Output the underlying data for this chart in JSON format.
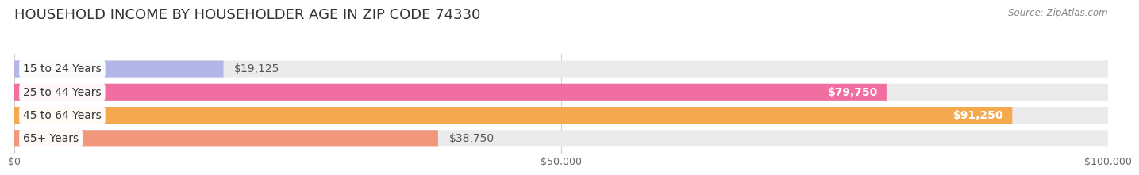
{
  "title": "HOUSEHOLD INCOME BY HOUSEHOLDER AGE IN ZIP CODE 74330",
  "source": "Source: ZipAtlas.com",
  "categories": [
    "15 to 24 Years",
    "25 to 44 Years",
    "45 to 64 Years",
    "65+ Years"
  ],
  "values": [
    19125,
    79750,
    91250,
    38750
  ],
  "bar_colors": [
    "#b3b7e8",
    "#f06fa0",
    "#f5a94e",
    "#f0967a"
  ],
  "track_color": "#ebebeb",
  "xlim": [
    0,
    100000
  ],
  "xticks": [
    0,
    50000,
    100000
  ],
  "xtick_labels": [
    "$0",
    "$50,000",
    "$100,000"
  ],
  "value_labels": [
    "$19,125",
    "$79,750",
    "$91,250",
    "$38,750"
  ],
  "value_inside": [
    false,
    true,
    true,
    false
  ],
  "background_color": "#ffffff",
  "title_fontsize": 13,
  "label_fontsize": 10,
  "bar_height": 0.72,
  "figsize": [
    14.06,
    2.33
  ]
}
